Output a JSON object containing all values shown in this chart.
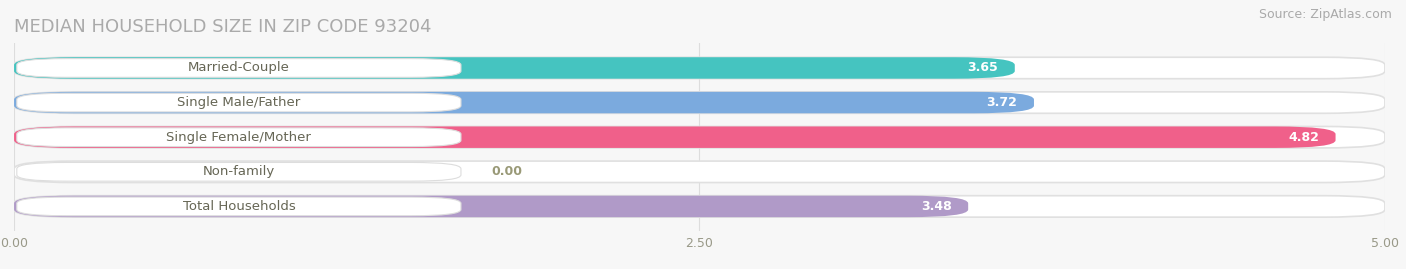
{
  "title": "MEDIAN HOUSEHOLD SIZE IN ZIP CODE 93204",
  "source": "Source: ZipAtlas.com",
  "categories": [
    "Married-Couple",
    "Single Male/Father",
    "Single Female/Mother",
    "Non-family",
    "Total Households"
  ],
  "values": [
    3.65,
    3.72,
    4.82,
    0.0,
    3.48
  ],
  "bar_colors": [
    "#45c4c0",
    "#7baade",
    "#f0608a",
    "#f5c99a",
    "#b09ac8"
  ],
  "track_color": "#ebebeb",
  "xlim": [
    0,
    5.0
  ],
  "xticks": [
    0.0,
    2.5,
    5.0
  ],
  "xtick_labels": [
    "0.00",
    "2.50",
    "5.00"
  ],
  "bar_height": 0.62,
  "background_color": "#f7f7f7",
  "title_fontsize": 13,
  "source_fontsize": 9,
  "label_fontsize": 9.5,
  "value_fontsize": 9
}
